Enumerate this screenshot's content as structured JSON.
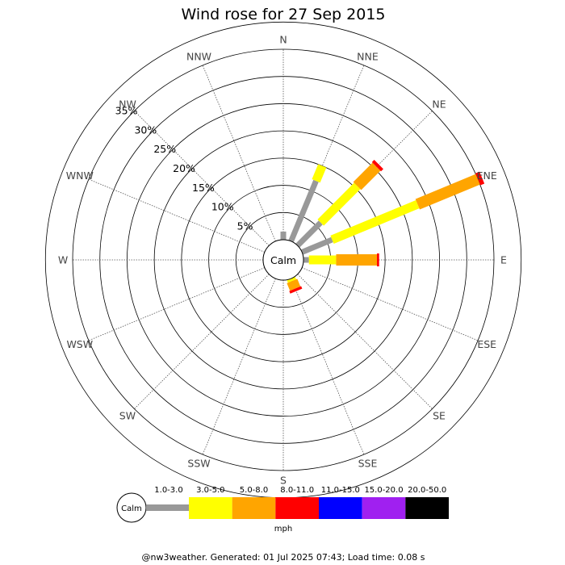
{
  "chart_data": {
    "type": "wind-rose",
    "title": "Wind rose for 27 Sep 2015",
    "directions": [
      "N",
      "NNE",
      "NE",
      "ENE",
      "E",
      "ESE",
      "SE",
      "SSE",
      "S",
      "SSW",
      "SW",
      "WSW",
      "W",
      "WNW",
      "NW",
      "NNW"
    ],
    "radial_ticks": [
      "5%",
      "10%",
      "15%",
      "20%",
      "25%",
      "30%",
      "35%"
    ],
    "radial_max": 35,
    "calm_label": "Calm",
    "speed_bins": [
      "1.0-3.0",
      "3.0-5.0",
      "5.0-8.0",
      "8.0-11.0",
      "11.0-15.0",
      "15.0-20.0",
      "20.0-50.0"
    ],
    "bin_colors": [
      "#999999",
      "#ffff00",
      "#ffa500",
      "#ff0000",
      "#0000ff",
      "#a020f0",
      "#000000"
    ],
    "unit": "mph",
    "series": [
      {
        "direction": "N",
        "values": [
          1.5,
          0,
          0,
          0,
          0,
          0,
          0
        ]
      },
      {
        "direction": "NNE",
        "values": [
          12,
          3,
          0,
          0,
          0,
          0,
          0
        ]
      },
      {
        "direction": "NE",
        "values": [
          6,
          9.5,
          5,
          0.6,
          0,
          0,
          0
        ]
      },
      {
        "direction": "ENE",
        "values": [
          6,
          17,
          12,
          0.8,
          0,
          0,
          0
        ]
      },
      {
        "direction": "E",
        "values": [
          1,
          5,
          7.5,
          0.4,
          0,
          0,
          0
        ]
      },
      {
        "direction": "ESE",
        "values": [
          0,
          0,
          0,
          0,
          0,
          0,
          0
        ]
      },
      {
        "direction": "SE",
        "values": [
          0,
          0,
          0,
          0,
          0,
          0,
          0
        ]
      },
      {
        "direction": "SSE",
        "values": [
          0,
          0.5,
          1.5,
          0.5,
          0,
          0,
          0
        ]
      },
      {
        "direction": "S",
        "values": [
          0,
          0,
          0,
          0,
          0,
          0,
          0
        ]
      },
      {
        "direction": "SSW",
        "values": [
          0,
          0,
          0,
          0,
          0,
          0,
          0
        ]
      },
      {
        "direction": "SW",
        "values": [
          0,
          0,
          0,
          0,
          0,
          0,
          0
        ]
      },
      {
        "direction": "WSW",
        "values": [
          0,
          0,
          0,
          0,
          0,
          0,
          0
        ]
      },
      {
        "direction": "W",
        "values": [
          0,
          0,
          0,
          0,
          0,
          0,
          0
        ]
      },
      {
        "direction": "WNW",
        "values": [
          0,
          0,
          0,
          0,
          0,
          0,
          0
        ]
      },
      {
        "direction": "NW",
        "values": [
          0,
          0,
          0,
          0,
          0,
          0,
          0
        ]
      },
      {
        "direction": "NNW",
        "values": [
          0,
          0,
          0,
          0,
          0,
          0,
          0
        ]
      }
    ],
    "footer": "@nw3weather. Generated: 01 Jul 2025 07:43; Load time: 0.08 s"
  }
}
